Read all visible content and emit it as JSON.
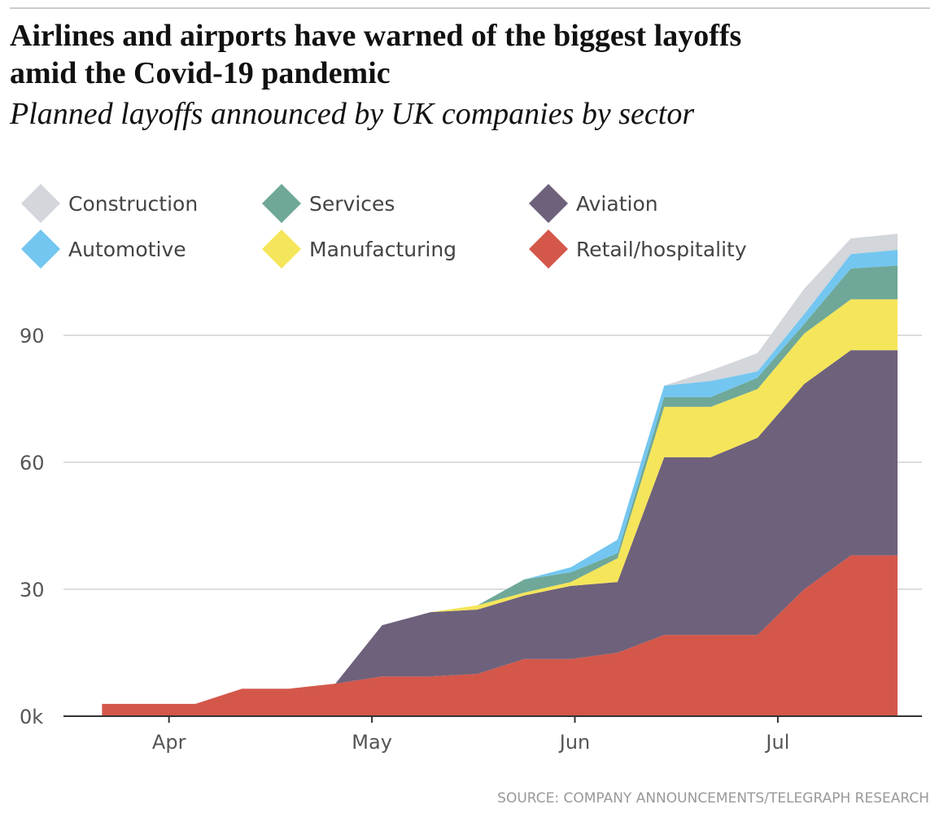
{
  "chart_data": {
    "type": "stacked-area",
    "title": "Airlines and airports have warned of the biggest layoffs amid the Covid-19 pandemic",
    "subtitle": "Planned layoffs announced by UK companies by sector",
    "source": "SOURCE: COMPANY ANNOUNCEMENTS/TELEGRAPH RESEARCH",
    "x": [
      3.67,
      3.9,
      4.13,
      4.36,
      4.59,
      4.82,
      5.05,
      5.29,
      5.52,
      5.75,
      5.98,
      6.21,
      6.44,
      6.67,
      6.9,
      7.13,
      7.36,
      7.59
    ],
    "xlim": [
      3.48,
      7.71
    ],
    "xticks": [
      {
        "value": 4,
        "label": "Apr"
      },
      {
        "value": 5,
        "label": "May"
      },
      {
        "value": 6,
        "label": "Jun"
      },
      {
        "value": 7,
        "label": "Jul"
      }
    ],
    "ylim": [
      0,
      125
    ],
    "yticks": [
      {
        "value": 0,
        "label": "0k"
      },
      30,
      60,
      90
    ],
    "grid": true,
    "series": [
      {
        "name": "Retail/hospitality",
        "color": "#d4574a",
        "values": [
          2.9,
          2.9,
          2.9,
          6.5,
          6.5,
          7.7,
          9.4,
          9.4,
          10,
          13.5,
          13.5,
          15,
          19.2,
          19.2,
          19.2,
          30,
          38,
          38
        ]
      },
      {
        "name": "Aviation",
        "color": "#6e617b",
        "values": [
          0,
          0,
          0,
          0,
          0,
          0,
          12.1,
          15.2,
          15.2,
          15,
          17.3,
          16.7,
          42,
          42,
          46.6,
          48.5,
          48.5,
          48.5
        ]
      },
      {
        "name": "Manufacturing",
        "color": "#f5e55a",
        "values": [
          0,
          0,
          0,
          0,
          0,
          0,
          0,
          0,
          1,
          0.7,
          0.9,
          5.6,
          11.9,
          11.9,
          11.5,
          11.9,
          12,
          12
        ]
      },
      {
        "name": "Services",
        "color": "#6fa898",
        "values": [
          0,
          0,
          0,
          0,
          0,
          0,
          0,
          0,
          0,
          3.1,
          2.3,
          1.2,
          2.3,
          2.3,
          2.7,
          2.3,
          7.3,
          8
        ]
      },
      {
        "name": "Automotive",
        "color": "#73c6f0",
        "values": [
          0,
          0,
          0,
          0,
          0,
          0,
          0,
          0,
          0,
          0,
          1.2,
          3.2,
          2.7,
          3.8,
          1.5,
          2.3,
          3.4,
          3.7
        ]
      },
      {
        "name": "Construction",
        "color": "#d3d6db",
        "values": [
          0,
          0,
          0,
          0,
          0,
          0,
          0,
          0,
          0,
          0,
          0,
          0,
          0,
          2.5,
          4.3,
          6,
          3.7,
          3.8
        ]
      }
    ]
  }
}
